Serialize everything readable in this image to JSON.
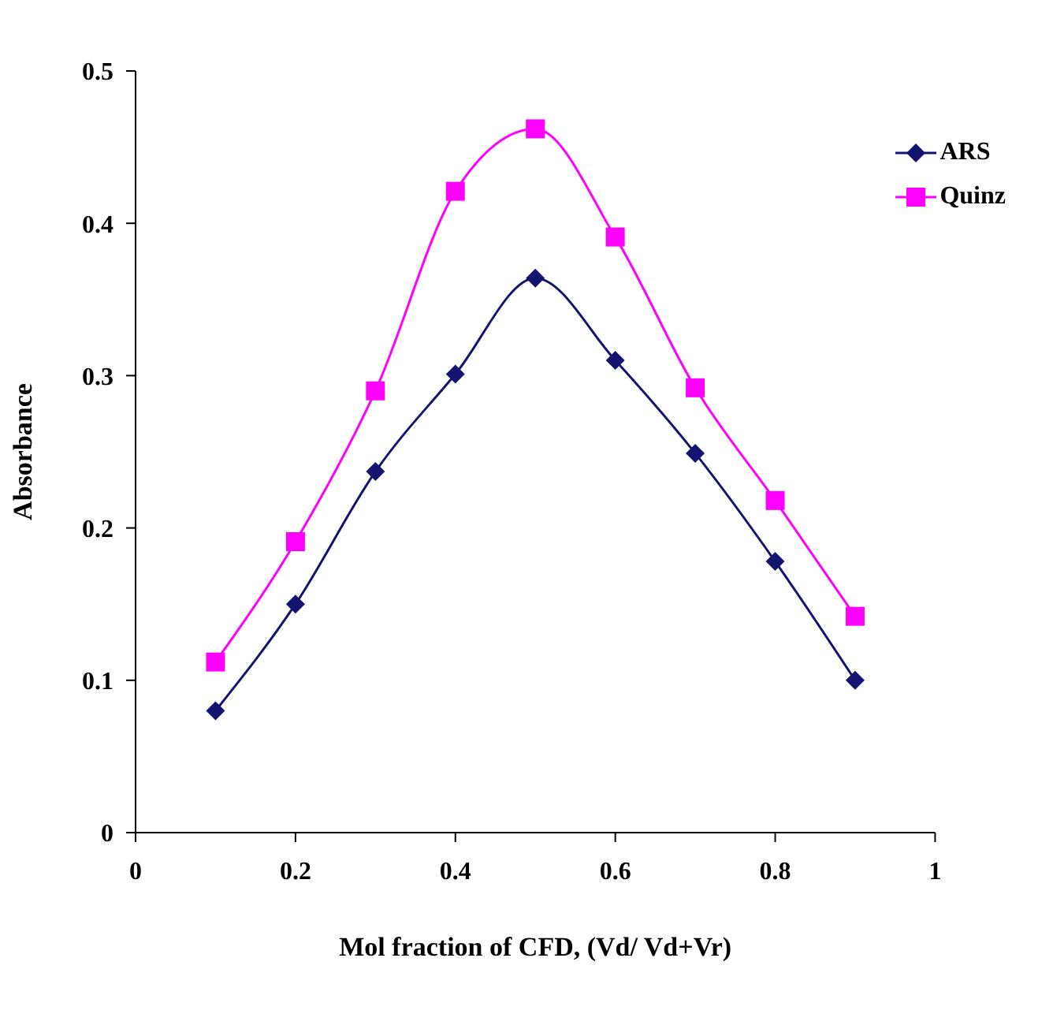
{
  "chart_data": {
    "type": "line",
    "xlabel": "Mol fraction of CFD, (Vd/ Vd+Vr)",
    "ylabel": "Absorbance",
    "x": [
      0.1,
      0.2,
      0.3,
      0.4,
      0.5,
      0.6,
      0.7,
      0.8,
      0.9
    ],
    "series": [
      {
        "name": "ARS",
        "color": "#141470",
        "marker": "diamond",
        "values": [
          0.08,
          0.15,
          0.237,
          0.301,
          0.364,
          0.31,
          0.249,
          0.178,
          0.1
        ]
      },
      {
        "name": "Quinz",
        "color": "#ff00ff",
        "marker": "square",
        "values": [
          0.112,
          0.191,
          0.29,
          0.421,
          0.462,
          0.391,
          0.292,
          0.218,
          0.142
        ]
      }
    ],
    "xlim": [
      0,
      1
    ],
    "xticks": [
      0,
      0.2,
      0.4,
      0.6,
      0.8,
      1
    ],
    "ylim": [
      0,
      0.5
    ],
    "yticks": [
      0,
      0.1,
      0.2,
      0.3,
      0.4,
      0.5
    ],
    "grid": false,
    "legend": "top right",
    "line_style": "solid"
  }
}
